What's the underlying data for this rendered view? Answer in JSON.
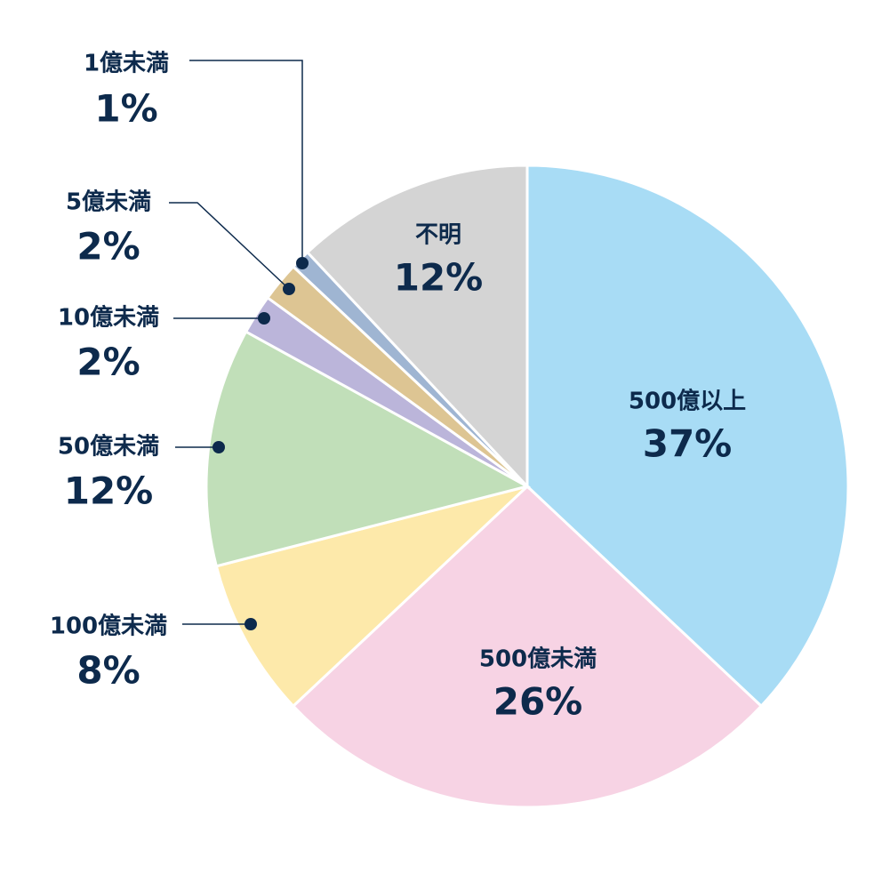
{
  "chart_data": {
    "type": "pie",
    "categories": [
      "500億以上",
      "500億未満",
      "100億未満",
      "50億未満",
      "10億未満",
      "5億未満",
      "1億未満",
      "不明"
    ],
    "values": [
      37,
      26,
      8,
      12,
      2,
      2,
      1,
      12
    ],
    "value_labels": [
      "37%",
      "26%",
      "8%",
      "12%",
      "2%",
      "2%",
      "1%",
      "12%"
    ],
    "colors": [
      "#a8dcf5",
      "#f7d3e4",
      "#fde9aa",
      "#c1dfb9",
      "#bbb5da",
      "#ddc593",
      "#9fb5d2",
      "#d4d4d4"
    ]
  }
}
